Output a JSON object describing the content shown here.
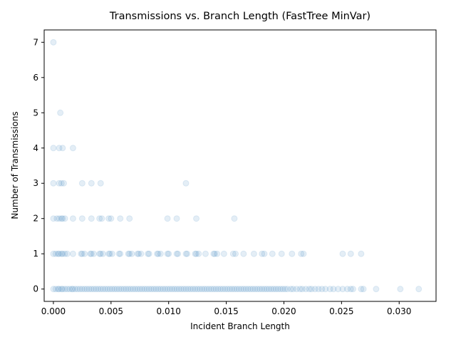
{
  "chart_data": {
    "type": "scatter",
    "title": "Transmissions vs. Branch Length (FastTree MinVar)",
    "xlabel": "Incident Branch Length",
    "ylabel": "Number of Transmissions",
    "xlim": [
      -0.0008,
      0.0332
    ],
    "ylim": [
      -0.35,
      7.35
    ],
    "xticks": [
      0.0,
      0.005,
      0.01,
      0.015,
      0.02,
      0.025,
      0.03
    ],
    "xtick_labels": [
      "0.000",
      "0.005",
      "0.010",
      "0.015",
      "0.020",
      "0.025",
      "0.030"
    ],
    "yticks": [
      0,
      1,
      2,
      3,
      4,
      5,
      6,
      7
    ],
    "ytick_labels": [
      "0",
      "1",
      "2",
      "3",
      "4",
      "5",
      "6",
      "7"
    ],
    "grid": false,
    "point_color": "#1f77b4",
    "point_alpha": 0.12,
    "series": [
      {
        "points": [
          [
            0.0,
            7
          ],
          [
            0.0006,
            5
          ],
          [
            0.0,
            4
          ],
          [
            0.0005,
            4
          ],
          [
            0.0008,
            4
          ],
          [
            0.0017,
            4
          ],
          [
            0.0,
            3
          ],
          [
            0.0005,
            3
          ],
          [
            0.0007,
            3
          ],
          [
            0.0009,
            3
          ],
          [
            0.0025,
            3
          ],
          [
            0.0033,
            3
          ],
          [
            0.0041,
            3
          ],
          [
            0.0115,
            3
          ],
          [
            0.0,
            2
          ],
          [
            0.0003,
            2
          ],
          [
            0.0005,
            2
          ],
          [
            0.0007,
            2
          ],
          [
            0.0008,
            2
          ],
          [
            0.001,
            2
          ],
          [
            0.0017,
            2
          ],
          [
            0.0025,
            2
          ],
          [
            0.0033,
            2
          ],
          [
            0.004,
            2
          ],
          [
            0.0042,
            2
          ],
          [
            0.0048,
            2
          ],
          [
            0.005,
            2
          ],
          [
            0.0058,
            2
          ],
          [
            0.0066,
            2
          ],
          [
            0.0099,
            2
          ],
          [
            0.0107,
            2
          ],
          [
            0.0124,
            2
          ],
          [
            0.0157,
            2
          ],
          [
            0.0,
            1
          ],
          [
            0.0002,
            1
          ],
          [
            0.0004,
            1
          ],
          [
            0.0005,
            1
          ],
          [
            0.0007,
            1
          ],
          [
            0.0008,
            1
          ],
          [
            0.001,
            1
          ],
          [
            0.0012,
            1
          ],
          [
            0.0017,
            1
          ],
          [
            0.0024,
            1
          ],
          [
            0.0025,
            1
          ],
          [
            0.0027,
            1
          ],
          [
            0.0032,
            1
          ],
          [
            0.0033,
            1
          ],
          [
            0.0035,
            1
          ],
          [
            0.004,
            1
          ],
          [
            0.0041,
            1
          ],
          [
            0.0043,
            1
          ],
          [
            0.0048,
            1
          ],
          [
            0.0049,
            1
          ],
          [
            0.0051,
            1
          ],
          [
            0.0057,
            1
          ],
          [
            0.0058,
            1
          ],
          [
            0.0065,
            1
          ],
          [
            0.0066,
            1
          ],
          [
            0.0068,
            1
          ],
          [
            0.0073,
            1
          ],
          [
            0.0074,
            1
          ],
          [
            0.0076,
            1
          ],
          [
            0.0082,
            1
          ],
          [
            0.0083,
            1
          ],
          [
            0.009,
            1
          ],
          [
            0.0091,
            1
          ],
          [
            0.0093,
            1
          ],
          [
            0.0099,
            1
          ],
          [
            0.01,
            1
          ],
          [
            0.0107,
            1
          ],
          [
            0.0108,
            1
          ],
          [
            0.0115,
            1
          ],
          [
            0.0116,
            1
          ],
          [
            0.0123,
            1
          ],
          [
            0.0124,
            1
          ],
          [
            0.0126,
            1
          ],
          [
            0.0132,
            1
          ],
          [
            0.0139,
            1
          ],
          [
            0.014,
            1
          ],
          [
            0.0142,
            1
          ],
          [
            0.0148,
            1
          ],
          [
            0.0156,
            1
          ],
          [
            0.0158,
            1
          ],
          [
            0.0165,
            1
          ],
          [
            0.0174,
            1
          ],
          [
            0.0181,
            1
          ],
          [
            0.0183,
            1
          ],
          [
            0.019,
            1
          ],
          [
            0.0198,
            1
          ],
          [
            0.0207,
            1
          ],
          [
            0.0215,
            1
          ],
          [
            0.0217,
            1
          ],
          [
            0.0251,
            1
          ],
          [
            0.0258,
            1
          ],
          [
            0.0267,
            1
          ],
          [
            0.0,
            0
          ],
          [
            0.0002,
            0
          ],
          [
            0.0004,
            0
          ],
          [
            0.0005,
            0
          ],
          [
            0.0007,
            0
          ],
          [
            0.0008,
            0
          ],
          [
            0.001,
            0
          ],
          [
            0.0012,
            0
          ],
          [
            0.0014,
            0
          ],
          [
            0.0016,
            0
          ],
          [
            0.0017,
            0
          ],
          [
            0.0019,
            0
          ],
          [
            0.0021,
            0
          ],
          [
            0.0023,
            0
          ],
          [
            0.0025,
            0
          ],
          [
            0.0027,
            0
          ],
          [
            0.0029,
            0
          ],
          [
            0.0031,
            0
          ],
          [
            0.0033,
            0
          ],
          [
            0.0035,
            0
          ],
          [
            0.0037,
            0
          ],
          [
            0.0039,
            0
          ],
          [
            0.0041,
            0
          ],
          [
            0.0043,
            0
          ],
          [
            0.0045,
            0
          ],
          [
            0.0047,
            0
          ],
          [
            0.0049,
            0
          ],
          [
            0.0051,
            0
          ],
          [
            0.0053,
            0
          ],
          [
            0.0055,
            0
          ],
          [
            0.0057,
            0
          ],
          [
            0.0059,
            0
          ],
          [
            0.0061,
            0
          ],
          [
            0.0063,
            0
          ],
          [
            0.0065,
            0
          ],
          [
            0.0067,
            0
          ],
          [
            0.0069,
            0
          ],
          [
            0.0071,
            0
          ],
          [
            0.0073,
            0
          ],
          [
            0.0075,
            0
          ],
          [
            0.0077,
            0
          ],
          [
            0.0079,
            0
          ],
          [
            0.0081,
            0
          ],
          [
            0.0083,
            0
          ],
          [
            0.0085,
            0
          ],
          [
            0.0087,
            0
          ],
          [
            0.0089,
            0
          ],
          [
            0.0091,
            0
          ],
          [
            0.0093,
            0
          ],
          [
            0.0095,
            0
          ],
          [
            0.0097,
            0
          ],
          [
            0.0099,
            0
          ],
          [
            0.0101,
            0
          ],
          [
            0.0103,
            0
          ],
          [
            0.0105,
            0
          ],
          [
            0.0107,
            0
          ],
          [
            0.0109,
            0
          ],
          [
            0.0111,
            0
          ],
          [
            0.0113,
            0
          ],
          [
            0.0115,
            0
          ],
          [
            0.0117,
            0
          ],
          [
            0.0119,
            0
          ],
          [
            0.0121,
            0
          ],
          [
            0.0123,
            0
          ],
          [
            0.0125,
            0
          ],
          [
            0.0127,
            0
          ],
          [
            0.0129,
            0
          ],
          [
            0.0131,
            0
          ],
          [
            0.0133,
            0
          ],
          [
            0.0135,
            0
          ],
          [
            0.0137,
            0
          ],
          [
            0.0139,
            0
          ],
          [
            0.0141,
            0
          ],
          [
            0.0143,
            0
          ],
          [
            0.0145,
            0
          ],
          [
            0.0147,
            0
          ],
          [
            0.0149,
            0
          ],
          [
            0.0151,
            0
          ],
          [
            0.0153,
            0
          ],
          [
            0.0155,
            0
          ],
          [
            0.0157,
            0
          ],
          [
            0.0159,
            0
          ],
          [
            0.0161,
            0
          ],
          [
            0.0163,
            0
          ],
          [
            0.0165,
            0
          ],
          [
            0.0167,
            0
          ],
          [
            0.0169,
            0
          ],
          [
            0.0171,
            0
          ],
          [
            0.0173,
            0
          ],
          [
            0.0175,
            0
          ],
          [
            0.0177,
            0
          ],
          [
            0.0179,
            0
          ],
          [
            0.0181,
            0
          ],
          [
            0.0183,
            0
          ],
          [
            0.0185,
            0
          ],
          [
            0.0187,
            0
          ],
          [
            0.0189,
            0
          ],
          [
            0.0191,
            0
          ],
          [
            0.0193,
            0
          ],
          [
            0.0195,
            0
          ],
          [
            0.0197,
            0
          ],
          [
            0.0199,
            0
          ],
          [
            0.0201,
            0
          ],
          [
            0.0203,
            0
          ],
          [
            0.0206,
            0
          ],
          [
            0.0208,
            0
          ],
          [
            0.0211,
            0
          ],
          [
            0.0214,
            0
          ],
          [
            0.0216,
            0
          ],
          [
            0.0219,
            0
          ],
          [
            0.0222,
            0
          ],
          [
            0.0224,
            0
          ],
          [
            0.0227,
            0
          ],
          [
            0.023,
            0
          ],
          [
            0.0233,
            0
          ],
          [
            0.0236,
            0
          ],
          [
            0.024,
            0
          ],
          [
            0.0243,
            0
          ],
          [
            0.0247,
            0
          ],
          [
            0.0251,
            0
          ],
          [
            0.0255,
            0
          ],
          [
            0.0258,
            0
          ],
          [
            0.026,
            0
          ],
          [
            0.0267,
            0
          ],
          [
            0.0269,
            0
          ],
          [
            0.028,
            0
          ],
          [
            0.0301,
            0
          ],
          [
            0.0317,
            0
          ]
        ]
      }
    ]
  }
}
